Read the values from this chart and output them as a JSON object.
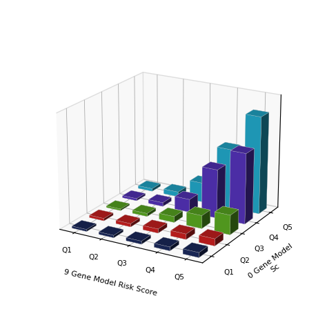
{
  "xlabel": "9 Gene Model Risk Score",
  "ylabel": "0 Gene Model\nSc",
  "x_categories": [
    "Q1",
    "Q2",
    "Q3",
    "Q4",
    "Q5"
  ],
  "y_categories": [
    "Q1",
    "Q2",
    "Q3",
    "Q4",
    "Q5"
  ],
  "values": [
    [
      0.18,
      0.22,
      0.28,
      0.35,
      0.45
    ],
    [
      0.22,
      0.3,
      0.38,
      0.5,
      0.65
    ],
    [
      0.15,
      0.28,
      0.55,
      1.2,
      1.8
    ],
    [
      0.2,
      0.35,
      1.2,
      4.5,
      6.5
    ],
    [
      0.25,
      0.45,
      1.8,
      5.5,
      9.0
    ]
  ],
  "bar_colors_by_y": [
    "#1b2a5e",
    "#cc2020",
    "#5aaa22",
    "#5533bb",
    "#22aacc"
  ],
  "background_color": "#ffffff",
  "pane_color": "#f0f0f0",
  "grid_color": "#aaaaaa",
  "bar_width": 0.55,
  "bar_depth": 0.55,
  "elev": 20,
  "azim": -60,
  "figsize": [
    4.74,
    4.74
  ],
  "dpi": 100,
  "zlim": 10.5
}
